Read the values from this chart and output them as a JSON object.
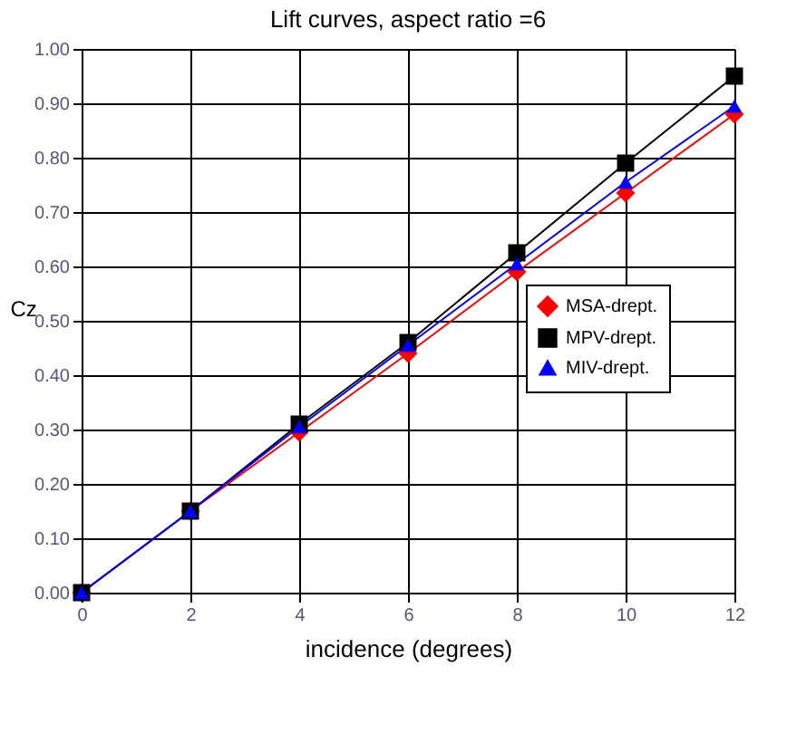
{
  "chart_data": {
    "type": "line",
    "title": "Lift curves, aspect ratio =6",
    "xlabel": "incidence (degrees)",
    "ylabel": "Cz",
    "x": [
      0,
      2,
      4,
      6,
      8,
      10,
      12
    ],
    "series": [
      {
        "name": "MSA-drept.",
        "color": "#ff0000",
        "marker": "diamond",
        "values": [
          0,
          0.15,
          0.295,
          0.44,
          0.59,
          0.735,
          0.88
        ]
      },
      {
        "name": "MPV-drept.",
        "color": "#000000",
        "marker": "square",
        "values": [
          0,
          0.15,
          0.31,
          0.46,
          0.625,
          0.79,
          0.95
        ]
      },
      {
        "name": "MIV-drept.",
        "color": "#0000ff",
        "marker": "triangle",
        "values": [
          0,
          0.15,
          0.305,
          0.455,
          0.605,
          0.755,
          0.895
        ]
      }
    ],
    "xlim": [
      0,
      12
    ],
    "xticks": [
      0,
      2,
      4,
      6,
      8,
      10,
      12
    ],
    "ylim": [
      0,
      1
    ],
    "yticks": [
      {
        "value": 0,
        "label": "0.00"
      },
      {
        "value": 0.1,
        "label": "0.10"
      },
      {
        "value": 0.2,
        "label": "0.20"
      },
      {
        "value": 0.3,
        "label": "0.30"
      },
      {
        "value": 0.4,
        "label": "0.40"
      },
      {
        "value": 0.5,
        "label": "0.50"
      },
      {
        "value": 0.6,
        "label": "0.60"
      },
      {
        "value": 0.7,
        "label": "0.70"
      },
      {
        "value": 0.8,
        "label": "0.80"
      },
      {
        "value": 0.9,
        "label": "0.90"
      },
      {
        "value": 1,
        "label": "1.00"
      }
    ],
    "grid": true,
    "legend": "right",
    "line_style": "solid"
  }
}
